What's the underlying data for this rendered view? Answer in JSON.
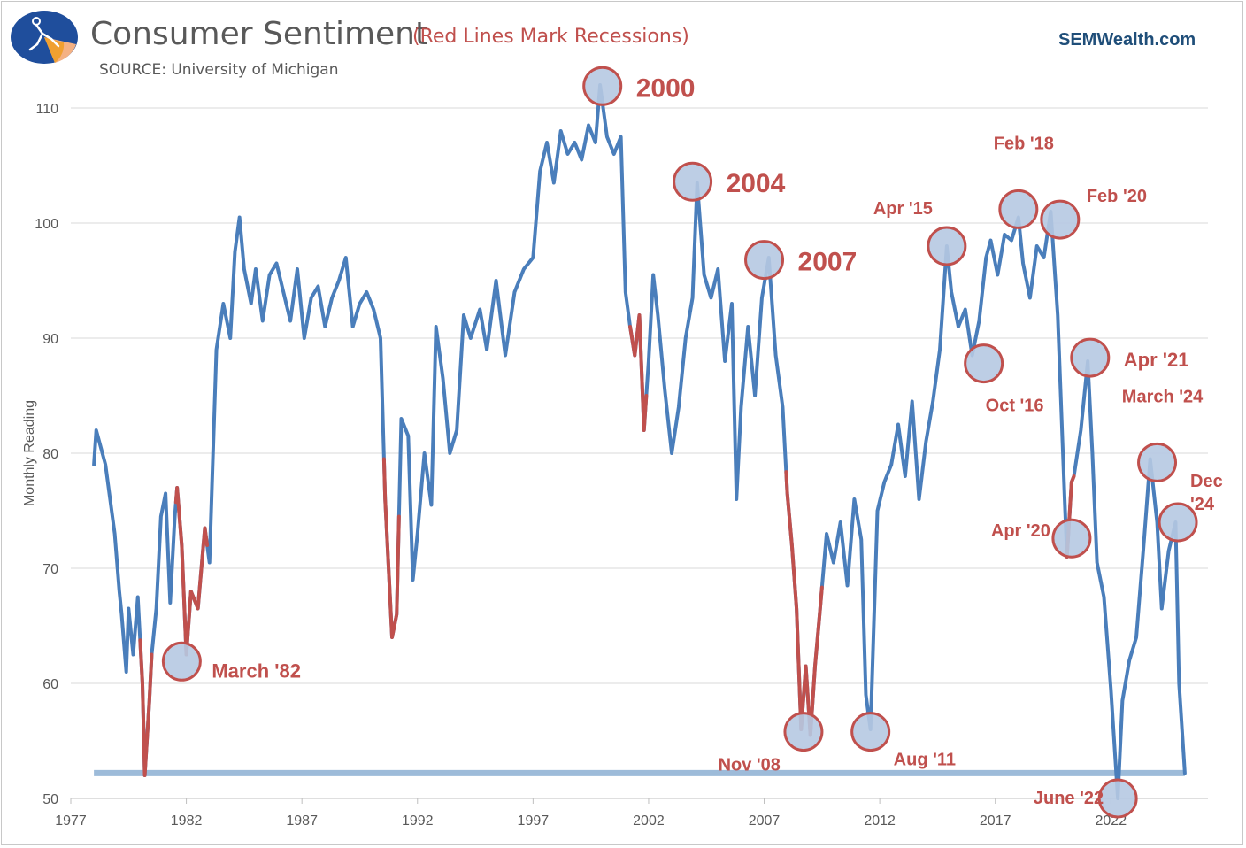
{
  "header": {
    "title": "Consumer Sentiment",
    "subtitle": "(Red Lines Mark Recessions)",
    "source": "SOURCE: University of Michigan",
    "brand": "SEMWealth.com"
  },
  "colors": {
    "line": "#4a7ebb",
    "recession": "#c0504d",
    "circle_fill": "#b6c9e2",
    "floor_line": "#9dbbd9",
    "grid": "#d9d9d9",
    "axis_text": "#595959",
    "annotation": "#c0504d"
  },
  "chart_data": {
    "type": "line",
    "title": "Consumer Sentiment",
    "ylabel": "Monthly Reading",
    "xlabel": "",
    "xlim": [
      1977,
      2026.2
    ],
    "ylim": [
      50,
      110
    ],
    "x_ticks": [
      "1977",
      "1982",
      "1987",
      "1992",
      "1997",
      "2002",
      "2007",
      "2012",
      "2017",
      "2022"
    ],
    "y_ticks": [
      "50",
      "60",
      "70",
      "80",
      "90",
      "100",
      "110"
    ],
    "grid": "horizontal",
    "series": [
      {
        "name": "",
        "x": [
          1978.0,
          1978.1,
          1978.3,
          1978.5,
          1978.7,
          1978.9,
          1979.1,
          1979.2,
          1979.4,
          1979.5,
          1979.7,
          1979.9,
          1980.1,
          1980.2,
          1980.4,
          1980.5,
          1980.7,
          1980.9,
          1981.1,
          1981.3,
          1981.5,
          1981.6,
          1981.8,
          1982.0,
          1982.2,
          1982.5,
          1982.8,
          1983.0,
          1983.3,
          1983.6,
          1983.9,
          1984.1,
          1984.3,
          1984.5,
          1984.8,
          1985.0,
          1985.3,
          1985.6,
          1985.9,
          1986.2,
          1986.5,
          1986.8,
          1987.1,
          1987.4,
          1987.7,
          1988.0,
          1988.3,
          1988.6,
          1988.9,
          1989.2,
          1989.5,
          1989.8,
          1990.1,
          1990.4,
          1990.6,
          1990.9,
          1991.1,
          1991.3,
          1991.6,
          1991.8,
          1992.0,
          1992.3,
          1992.6,
          1992.8,
          1993.1,
          1993.4,
          1993.7,
          1994.0,
          1994.3,
          1994.7,
          1995.0,
          1995.4,
          1995.8,
          1996.2,
          1996.6,
          1997.0,
          1997.3,
          1997.6,
          1997.9,
          1998.2,
          1998.5,
          1998.8,
          1999.1,
          1999.4,
          1999.7,
          1999.9,
          2000.2,
          2000.5,
          2000.8,
          2001.0,
          2001.2,
          2001.4,
          2001.6,
          2001.8,
          2002.0,
          2002.2,
          2002.4,
          2002.7,
          2003.0,
          2003.3,
          2003.6,
          2003.9,
          2004.1,
          2004.4,
          2004.7,
          2005.0,
          2005.3,
          2005.6,
          2005.8,
          2006.0,
          2006.3,
          2006.6,
          2006.9,
          2007.2,
          2007.5,
          2007.8,
          2008.0,
          2008.2,
          2008.4,
          2008.6,
          2008.8,
          2009.0,
          2009.2,
          2009.4,
          2009.7,
          2010.0,
          2010.3,
          2010.6,
          2010.9,
          2011.2,
          2011.4,
          2011.6,
          2011.9,
          2012.2,
          2012.5,
          2012.8,
          2013.1,
          2013.4,
          2013.7,
          2014.0,
          2014.3,
          2014.6,
          2014.9,
          2015.1,
          2015.4,
          2015.7,
          2016.0,
          2016.3,
          2016.6,
          2016.8,
          2017.1,
          2017.4,
          2017.7,
          2018.0,
          2018.2,
          2018.5,
          2018.8,
          2019.1,
          2019.4,
          2019.7,
          2020.0,
          2020.1,
          2020.3,
          2020.4,
          2020.7,
          2021.0,
          2021.2,
          2021.4,
          2021.7,
          2022.0,
          2022.3,
          2022.5,
          2022.8,
          2023.1,
          2023.4,
          2023.7,
          2024.0,
          2024.2,
          2024.5,
          2024.8,
          2024.95,
          2025.2
        ],
        "values": [
          79.0,
          82.0,
          80.5,
          79.0,
          76.0,
          73.0,
          68.0,
          66.0,
          61.0,
          66.5,
          62.5,
          67.5,
          60.0,
          52.0,
          58.5,
          62.5,
          66.5,
          74.5,
          76.5,
          67.0,
          74.5,
          77.0,
          72.0,
          62.5,
          68.0,
          66.5,
          73.5,
          70.5,
          89.0,
          93.0,
          90.0,
          97.5,
          100.5,
          96.0,
          93.0,
          96.0,
          91.5,
          95.5,
          96.5,
          94.0,
          91.5,
          96.0,
          90.0,
          93.5,
          94.5,
          91.0,
          93.5,
          95.0,
          97.0,
          91.0,
          93.0,
          94.0,
          92.5,
          90.0,
          76.0,
          64.0,
          66.0,
          83.0,
          81.5,
          69.0,
          73.0,
          80.0,
          75.5,
          91.0,
          86.5,
          80.0,
          82.0,
          92.0,
          90.0,
          92.5,
          89.0,
          95.0,
          88.5,
          94.0,
          96.0,
          97.0,
          104.5,
          107.0,
          103.5,
          108.0,
          106.0,
          107.0,
          105.5,
          108.5,
          107.0,
          112.0,
          107.5,
          106.0,
          107.5,
          94.0,
          91.0,
          88.5,
          92.0,
          82.0,
          88.0,
          95.5,
          92.0,
          85.5,
          80.0,
          84.0,
          90.0,
          93.5,
          103.5,
          95.5,
          93.5,
          96.0,
          88.0,
          93.0,
          76.0,
          84.0,
          91.0,
          85.0,
          93.5,
          97.0,
          88.5,
          84.0,
          76.5,
          72.0,
          66.5,
          56.0,
          61.5,
          55.5,
          61.5,
          66.0,
          73.0,
          70.5,
          74.0,
          68.5,
          76.0,
          72.5,
          59.0,
          56.0,
          75.0,
          77.5,
          79.0,
          82.5,
          78.0,
          84.5,
          76.0,
          81.0,
          84.5,
          89.0,
          98.0,
          94.0,
          91.0,
          92.5,
          88.5,
          91.5,
          97.0,
          98.5,
          95.5,
          99.0,
          98.5,
          100.5,
          96.5,
          93.5,
          98.0,
          97.0,
          101.0,
          92.0,
          76.0,
          71.0,
          77.5,
          78.0,
          82.0,
          88.0,
          80.0,
          70.5,
          67.5,
          59.5,
          50.0,
          58.5,
          62.0,
          64.0,
          71.5,
          79.5,
          74.0,
          66.5,
          71.5,
          74.0,
          60.0,
          52.2
        ]
      }
    ],
    "recessions": [
      [
        1980.0,
        1980.5
      ],
      [
        1981.55,
        1982.9
      ],
      [
        1990.55,
        1991.2
      ],
      [
        2001.2,
        2001.9
      ],
      [
        2007.95,
        2009.5
      ],
      [
        2020.1,
        2020.4
      ]
    ],
    "reference_line": {
      "value": 52.2,
      "x": [
        1978.0,
        2025.2
      ]
    },
    "annotations": [
      {
        "label": "March '82",
        "x": 1981.8,
        "y": 61.9,
        "side": "right"
      },
      {
        "label": "2000",
        "x": 2000.0,
        "y": 111.9,
        "side": "right"
      },
      {
        "label": "2004",
        "x": 2003.9,
        "y": 103.6,
        "side": "right"
      },
      {
        "label": "2007",
        "x": 2007.0,
        "y": 96.8,
        "side": "right"
      },
      {
        "label": "Nov '08",
        "x": 2008.7,
        "y": 55.8,
        "side": "bottom-left"
      },
      {
        "label": "Aug '11",
        "x": 2011.6,
        "y": 55.8,
        "side": "right-below"
      },
      {
        "label": "Apr '15",
        "x": 2014.9,
        "y": 98.0,
        "side": "top-left"
      },
      {
        "label": "Oct '16",
        "x": 2016.5,
        "y": 87.8,
        "side": "below"
      },
      {
        "label": "Feb '18",
        "x": 2018.0,
        "y": 101.2,
        "side": "top"
      },
      {
        "label": "Feb '20",
        "x": 2019.8,
        "y": 100.3,
        "side": "top-right"
      },
      {
        "label": "Apr '20",
        "x": 2020.3,
        "y": 72.6,
        "side": "left"
      },
      {
        "label": "Apr '21",
        "x": 2021.1,
        "y": 88.3,
        "side": "right"
      },
      {
        "label": "June '22",
        "x": 2022.3,
        "y": 50.0,
        "side": "left"
      },
      {
        "label": "March '24",
        "x": 2024.0,
        "y": 79.2,
        "side": "top"
      },
      {
        "label": "Dec '24",
        "x": 2024.9,
        "y": 74.0,
        "side": "top-right"
      }
    ]
  }
}
